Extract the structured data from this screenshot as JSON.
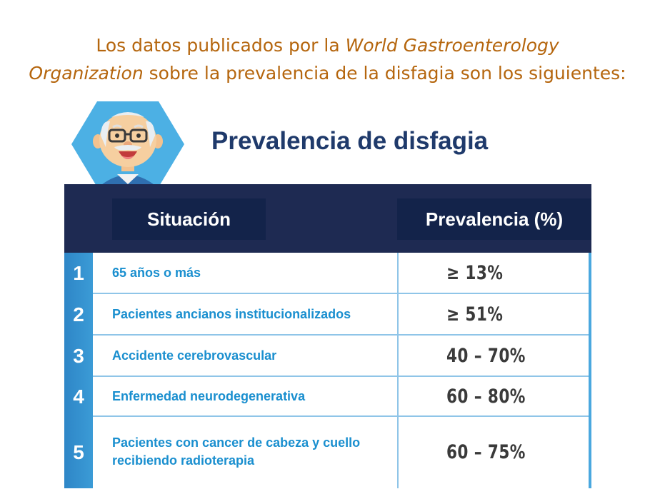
{
  "intro": {
    "part1": "Los datos publicados por la ",
    "org_italic": "World Gastroenterology Organization",
    "part2": " sobre la prevalencia de la disfagia son los siguientes:"
  },
  "title": "Prevalencia de disfagia",
  "table": {
    "headers": [
      "Situación",
      "Prevalencia (%)"
    ],
    "rows": [
      {
        "num": "1",
        "situacion": "65 años o más",
        "prevalencia": "≥ 13%"
      },
      {
        "num": "2",
        "situacion": "Pacientes ancianos institucionalizados",
        "prevalencia": "≥ 51%"
      },
      {
        "num": "3",
        "situacion": "Accidente cerebrovascular",
        "prevalencia": "40 – 70%"
      },
      {
        "num": "4",
        "situacion": "Enfermedad neurodegenerativa",
        "prevalencia": "60 – 80%"
      },
      {
        "num": "5",
        "situacion": "Pacientes con cancer de cabeza y cuello recibiendo radioterapia",
        "prevalencia": "60 – 75%"
      }
    ]
  },
  "avatar_icon": "elderly-man-avatar-icon",
  "colors": {
    "intro": "#b5660e",
    "title": "#1f3a6b",
    "header": "#1e2a52",
    "accent": "#1a8fcf"
  }
}
